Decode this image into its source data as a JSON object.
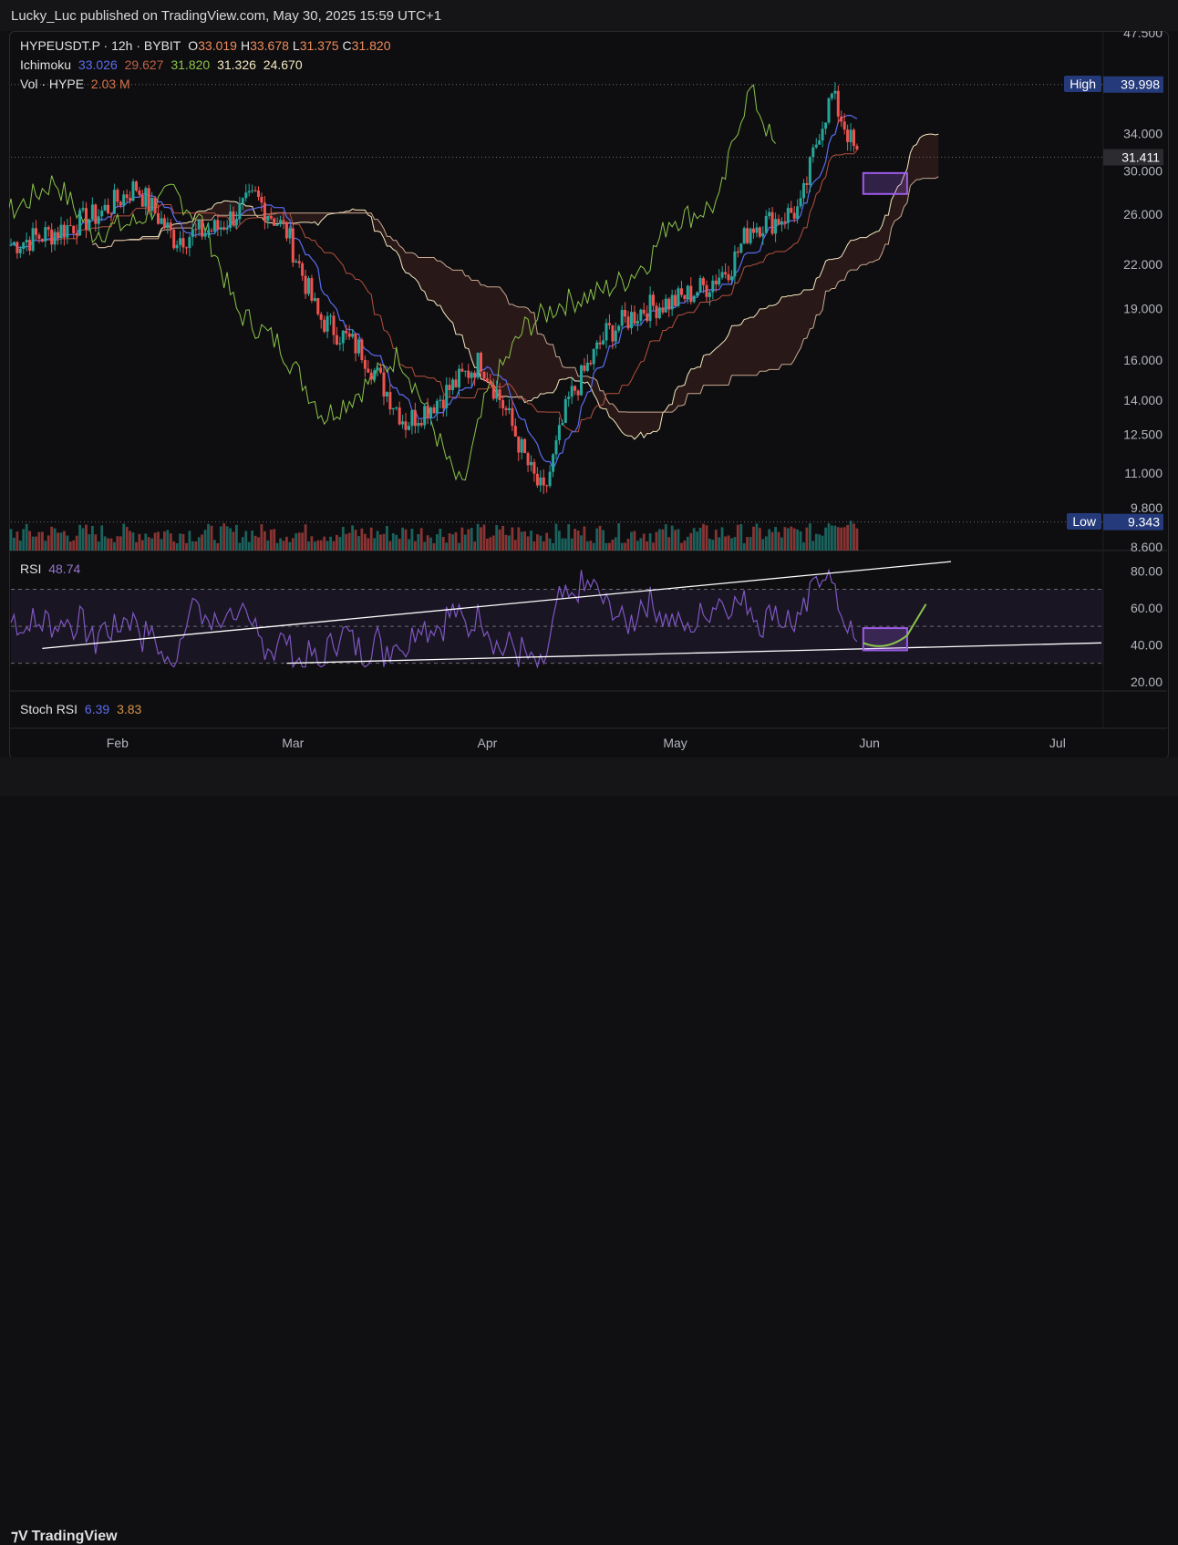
{
  "header": {
    "published_text": "Lucky_Luc published on TradingView.com, May 30, 2025 15:59 UTC+1"
  },
  "legend": {
    "symbol": "HYPEUSDT.P · 12h · BYBIT",
    "ohlc": [
      {
        "k": "O",
        "v": "33.019"
      },
      {
        "k": "H",
        "v": "33.678"
      },
      {
        "k": "L",
        "v": "31.375"
      },
      {
        "k": "C",
        "v": "31.820"
      }
    ],
    "ichimoku_label": "Ichimoku",
    "ichimoku_values": [
      "33.026",
      "29.627",
      "31.820",
      "31.326",
      "24.670"
    ],
    "vol_label": "Vol · HYPE",
    "vol_value": "2.03 M"
  },
  "price_axis": {
    "ticks": [
      "47.500",
      "34.000",
      "30.000",
      "26.000",
      "22.000",
      "19.000",
      "16.000",
      "14.000",
      "12.500",
      "11.000",
      "9.800",
      "8.600"
    ],
    "high_label": "High",
    "high_value": "39.998",
    "current_value": "31.411",
    "low_label": "Low",
    "low_value": "9.343"
  },
  "rsi": {
    "label": "RSI",
    "value": "48.74",
    "ticks": [
      "80.00",
      "60.00",
      "40.00",
      "20.00"
    ]
  },
  "stoch": {
    "label": "Stoch RSI",
    "k": "6.39",
    "d": "3.83"
  },
  "time_axis": {
    "labels": [
      "Feb",
      "Mar",
      "Apr",
      "May",
      "Jun",
      "Jul"
    ]
  },
  "footer": {
    "brand": "TradingView"
  },
  "colors": {
    "up": "#26a69a",
    "down": "#ef5350",
    "tenkan": "#5b6cf0",
    "kijun": "#b5503e",
    "lagging": "#8bc34a",
    "spanA": "#f3e7c0",
    "rsi": "#7e57c2",
    "accent": "#9c5be8"
  },
  "chart_data": {
    "type": "candlestick",
    "symbol": "HYPEUSDT.P",
    "interval": "12h",
    "exchange": "BYBIT",
    "y_scale": "log",
    "ylim": [
      8.6,
      47.5
    ],
    "x_range": [
      "2025-01-15",
      "2025-07-08"
    ],
    "close_path": [
      {
        "date": "2025-01-15",
        "close": 23.5
      },
      {
        "date": "2025-01-22",
        "close": 24.5
      },
      {
        "date": "2025-01-29",
        "close": 26.0
      },
      {
        "date": "2025-02-04",
        "close": 28.5
      },
      {
        "date": "2025-02-10",
        "close": 24.0
      },
      {
        "date": "2025-02-17",
        "close": 24.8
      },
      {
        "date": "2025-02-23",
        "close": 27.5
      },
      {
        "date": "2025-02-28",
        "close": 24.5
      },
      {
        "date": "2025-03-05",
        "close": 18.5
      },
      {
        "date": "2025-03-12",
        "close": 16.5
      },
      {
        "date": "2025-03-19",
        "close": 13.0
      },
      {
        "date": "2025-03-24",
        "close": 14.0
      },
      {
        "date": "2025-03-31",
        "close": 16.0
      },
      {
        "date": "2025-04-04",
        "close": 13.5
      },
      {
        "date": "2025-04-08",
        "close": 11.0
      },
      {
        "date": "2025-04-10",
        "close": 10.2
      },
      {
        "date": "2025-04-14",
        "close": 14.0
      },
      {
        "date": "2025-04-20",
        "close": 17.5
      },
      {
        "date": "2025-04-26",
        "close": 19.0
      },
      {
        "date": "2025-05-01",
        "close": 19.5
      },
      {
        "date": "2025-05-06",
        "close": 20.5
      },
      {
        "date": "2025-05-10",
        "close": 22.0
      },
      {
        "date": "2025-05-13",
        "close": 25.0
      },
      {
        "date": "2025-05-17",
        "close": 25.5
      },
      {
        "date": "2025-05-21",
        "close": 26.5
      },
      {
        "date": "2025-05-24",
        "close": 34.5
      },
      {
        "date": "2025-05-26",
        "close": 38.5
      },
      {
        "date": "2025-05-28",
        "close": 35.0
      },
      {
        "date": "2025-05-30",
        "close": 31.41
      }
    ],
    "high": 39.998,
    "low": 9.343,
    "last": 31.411,
    "rsi": {
      "last": 48.74,
      "bands": [
        30,
        50,
        70
      ],
      "ylim": [
        15,
        90
      ]
    },
    "stoch_rsi": {
      "k": 6.39,
      "d": 3.83
    }
  }
}
